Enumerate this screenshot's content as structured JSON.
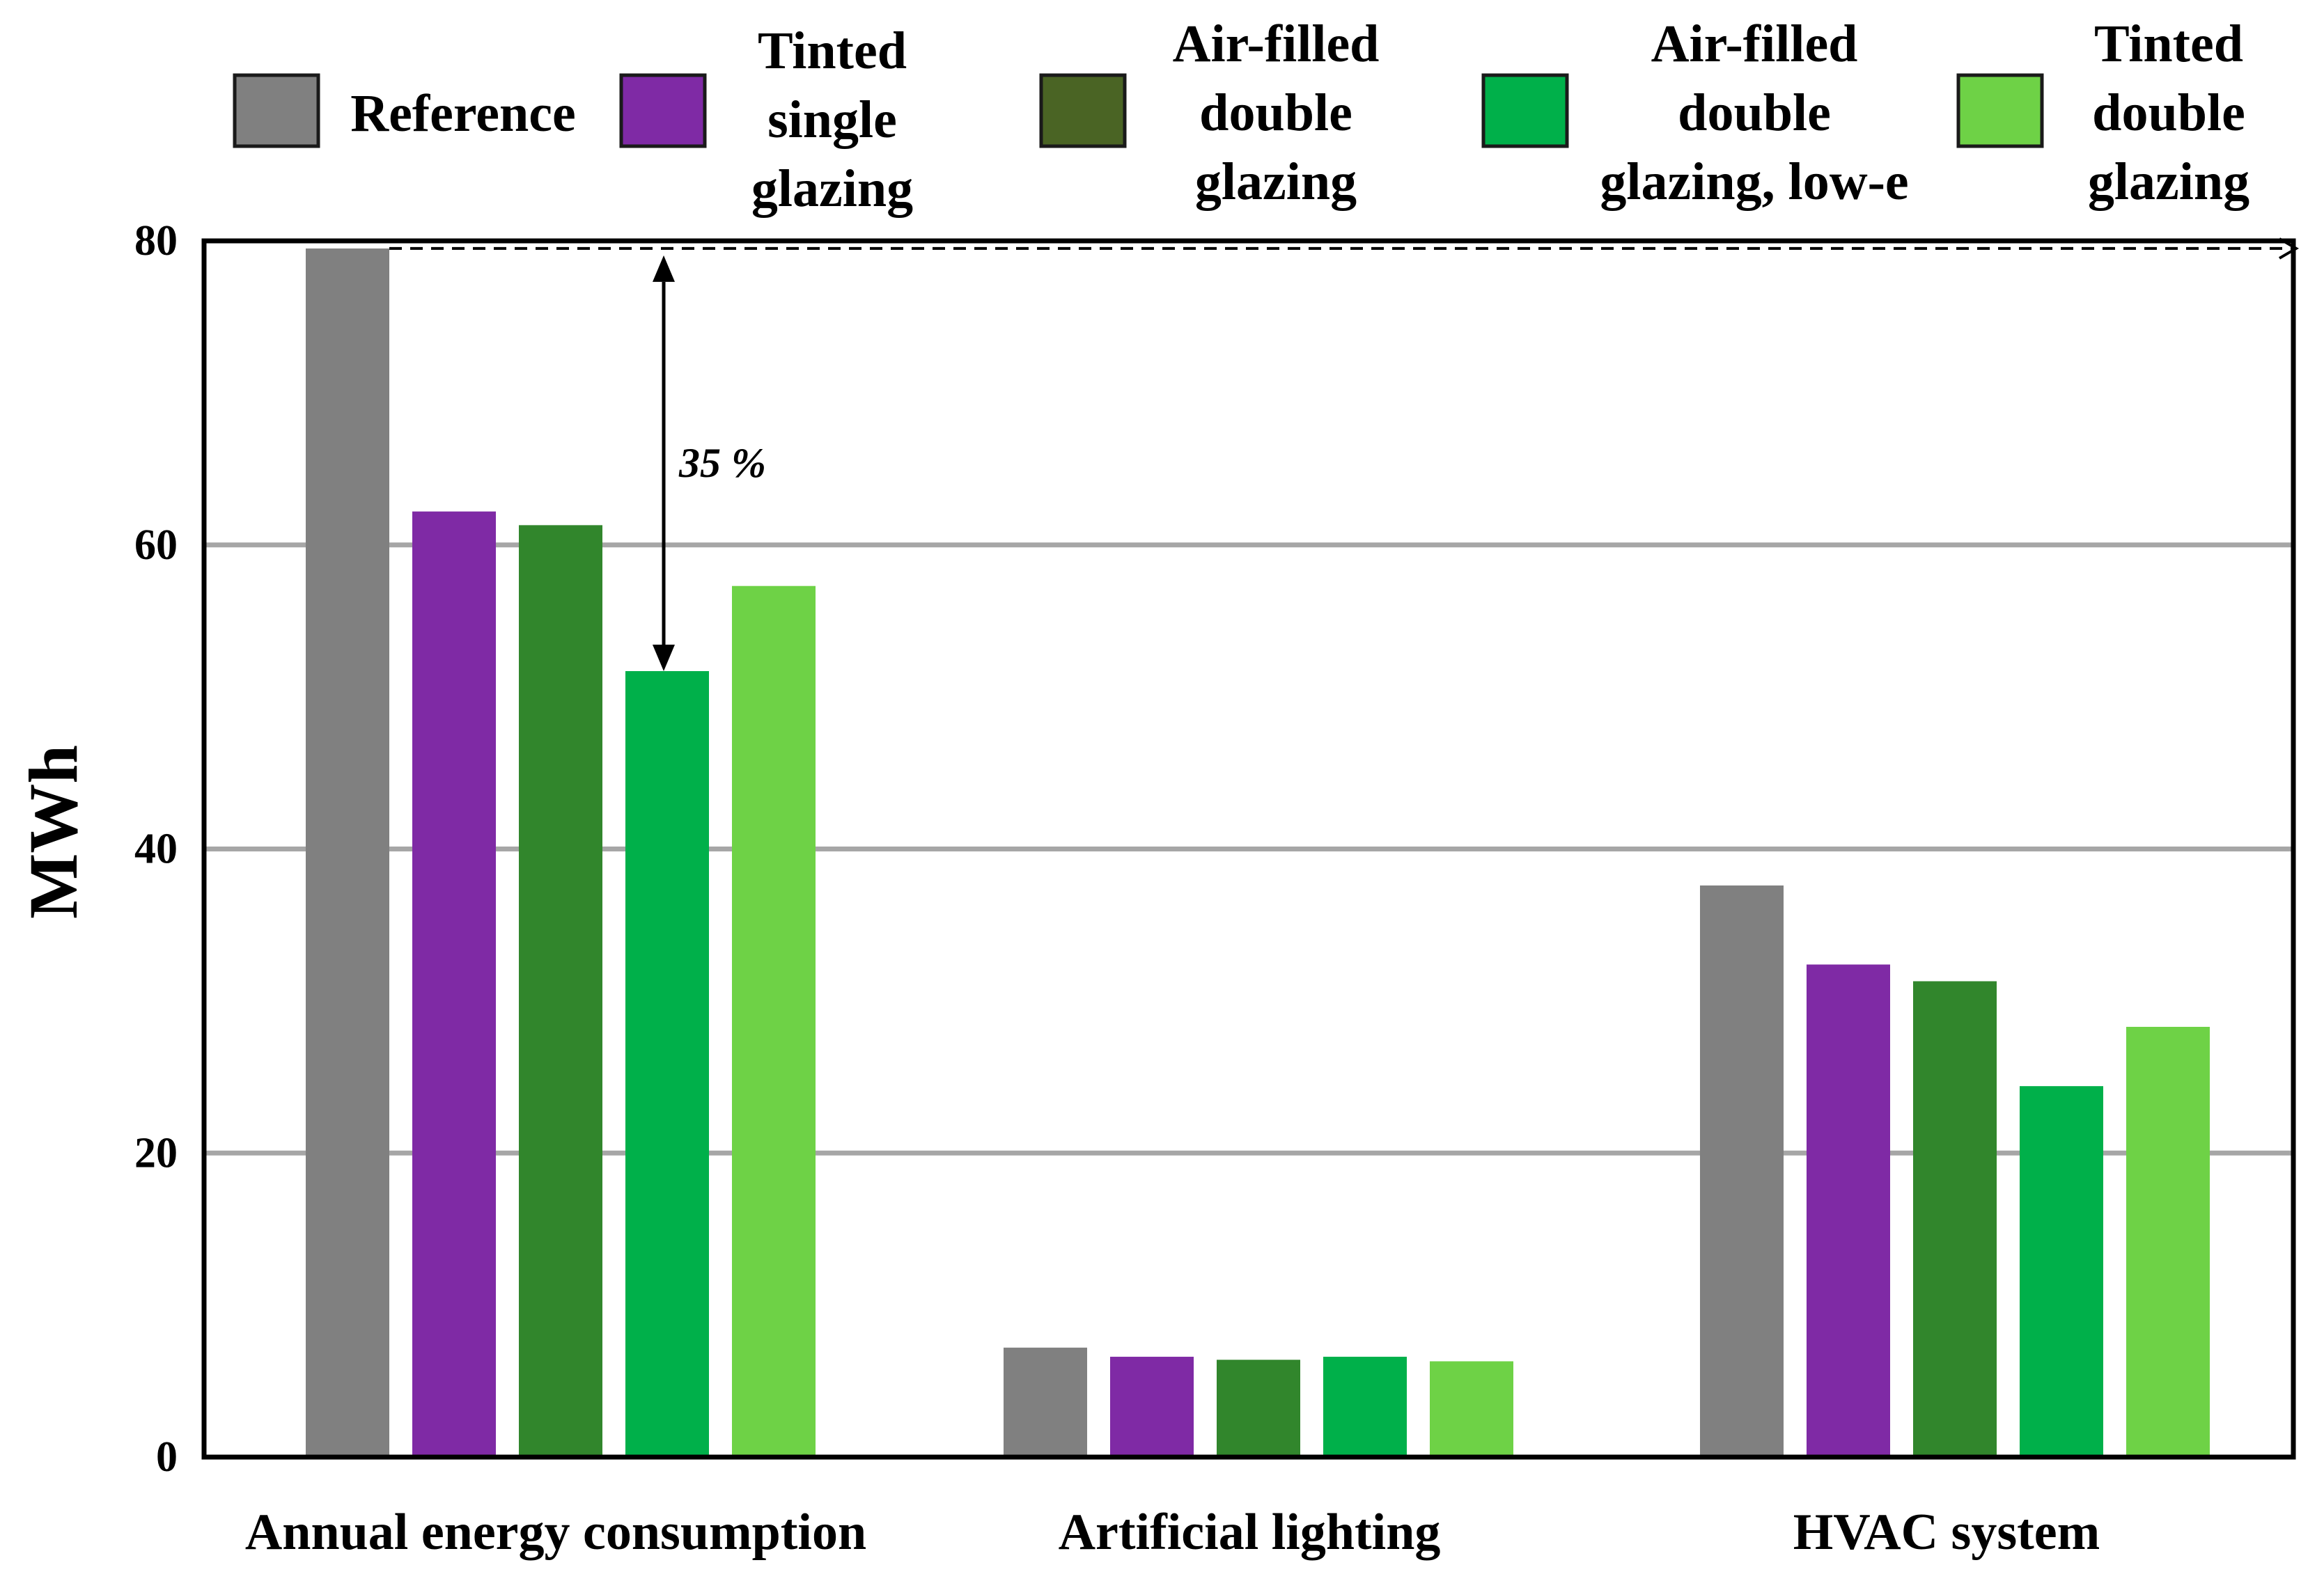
{
  "chart_data": {
    "type": "bar",
    "title": "",
    "xlabel": "",
    "ylabel": "MWh",
    "ylim": [
      0,
      80
    ],
    "yticks": [
      "0",
      "20",
      "40",
      "60",
      "80"
    ],
    "grid": true,
    "legend_position": "top",
    "categories": [
      "Annual energy consumption",
      "Artificial lighting",
      "HVAC system"
    ],
    "series": [
      {
        "name": "Reference",
        "name_lines": [
          "Reference"
        ],
        "color": "#808080",
        "values": [
          79.5,
          7.2,
          37.6
        ]
      },
      {
        "name": "Tinted single glazing",
        "name_lines": [
          "Tinted",
          "single",
          "glazing"
        ],
        "color": "#7f2aa5",
        "values": [
          62.2,
          6.6,
          32.4
        ]
      },
      {
        "name": "Air-filled double glazing",
        "name_lines": [
          "Air-filled",
          "double",
          "glazing"
        ],
        "color": "#31862c",
        "values": [
          61.3,
          6.4,
          31.3
        ]
      },
      {
        "name": "Air-filled double glazing, low-e",
        "name_lines": [
          "Air-filled",
          "double",
          "glazing, low-e"
        ],
        "color": "#00b04a",
        "values": [
          51.7,
          6.6,
          24.4
        ]
      },
      {
        "name": "Tinted double glazing",
        "name_lines": [
          "Tinted",
          "double",
          "glazing"
        ],
        "color": "#6ed246",
        "values": [
          57.3,
          6.3,
          28.3
        ]
      }
    ],
    "legend_swatch_colors": [
      "#808080",
      "#7f2aa5",
      "#4a6424",
      "#00b04a",
      "#6ed246"
    ],
    "annotation": {
      "text": "35 %",
      "from_value": 79.5,
      "to_value": 51.7
    }
  }
}
